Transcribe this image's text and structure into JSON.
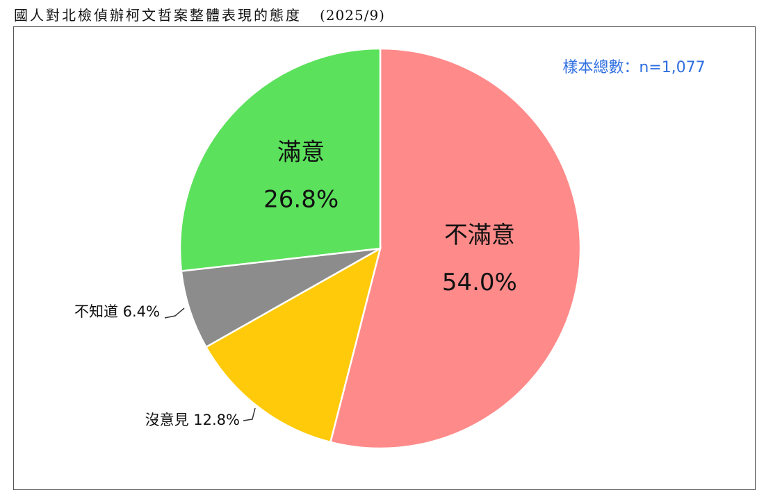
{
  "title": "國人對北檢偵辦柯文哲案整體表現的態度",
  "title_date": "(2025/9)",
  "sample_note": "樣本總數：n=1,077",
  "chart_data": {
    "type": "pie",
    "title": "國人對北檢偵辦柯文哲案整體表現的態度",
    "slices": [
      {
        "label": "不滿意",
        "value": 54.0,
        "display": "54.0%",
        "color": "#FF8A8A"
      },
      {
        "label": "沒意見",
        "value": 12.8,
        "display": "12.8%",
        "color": "#FFCA0A"
      },
      {
        "label": "不知道",
        "value": 6.4,
        "display": "6.4%",
        "color": "#8C8C8C"
      },
      {
        "label": "滿意",
        "value": 26.8,
        "display": "26.8%",
        "color": "#5CE15C"
      }
    ],
    "start_angle_deg": 0,
    "direction": "clockwise",
    "sample_size": "n=1,077",
    "legend": "none"
  },
  "colors": {
    "sample_note": "#2F6FE0",
    "outline": "#ffffff",
    "leader": "#333333"
  }
}
